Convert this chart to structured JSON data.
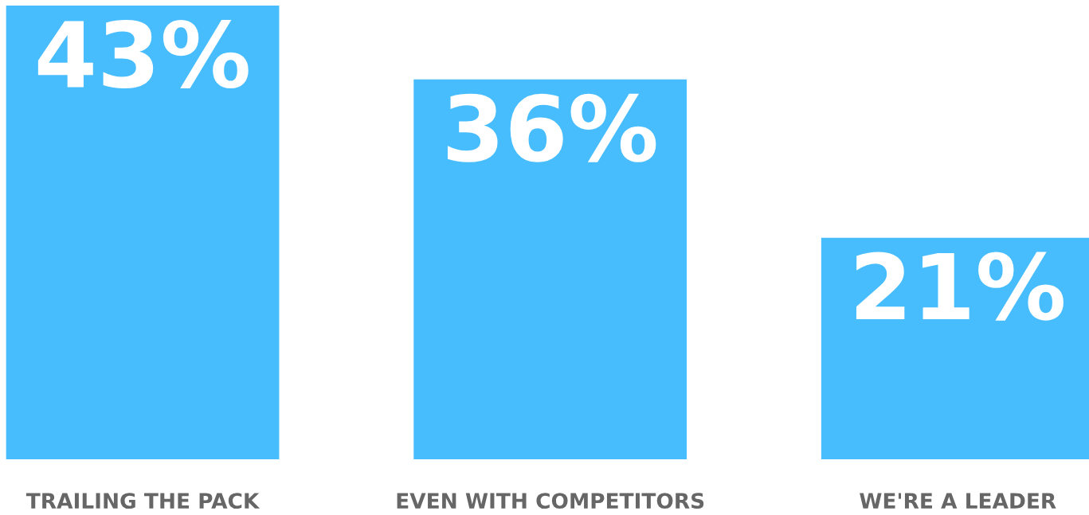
{
  "chart_data": {
    "type": "bar",
    "categories": [
      "TRAILING THE PACK",
      "EVEN WITH COMPETITORS",
      "WE'RE A LEADER"
    ],
    "values": [
      43,
      36,
      21
    ],
    "value_labels": [
      "43%",
      "36%",
      "21%"
    ],
    "color": "#47bdfe",
    "ylim": [
      0,
      43
    ],
    "grid": false,
    "legend": false
  }
}
